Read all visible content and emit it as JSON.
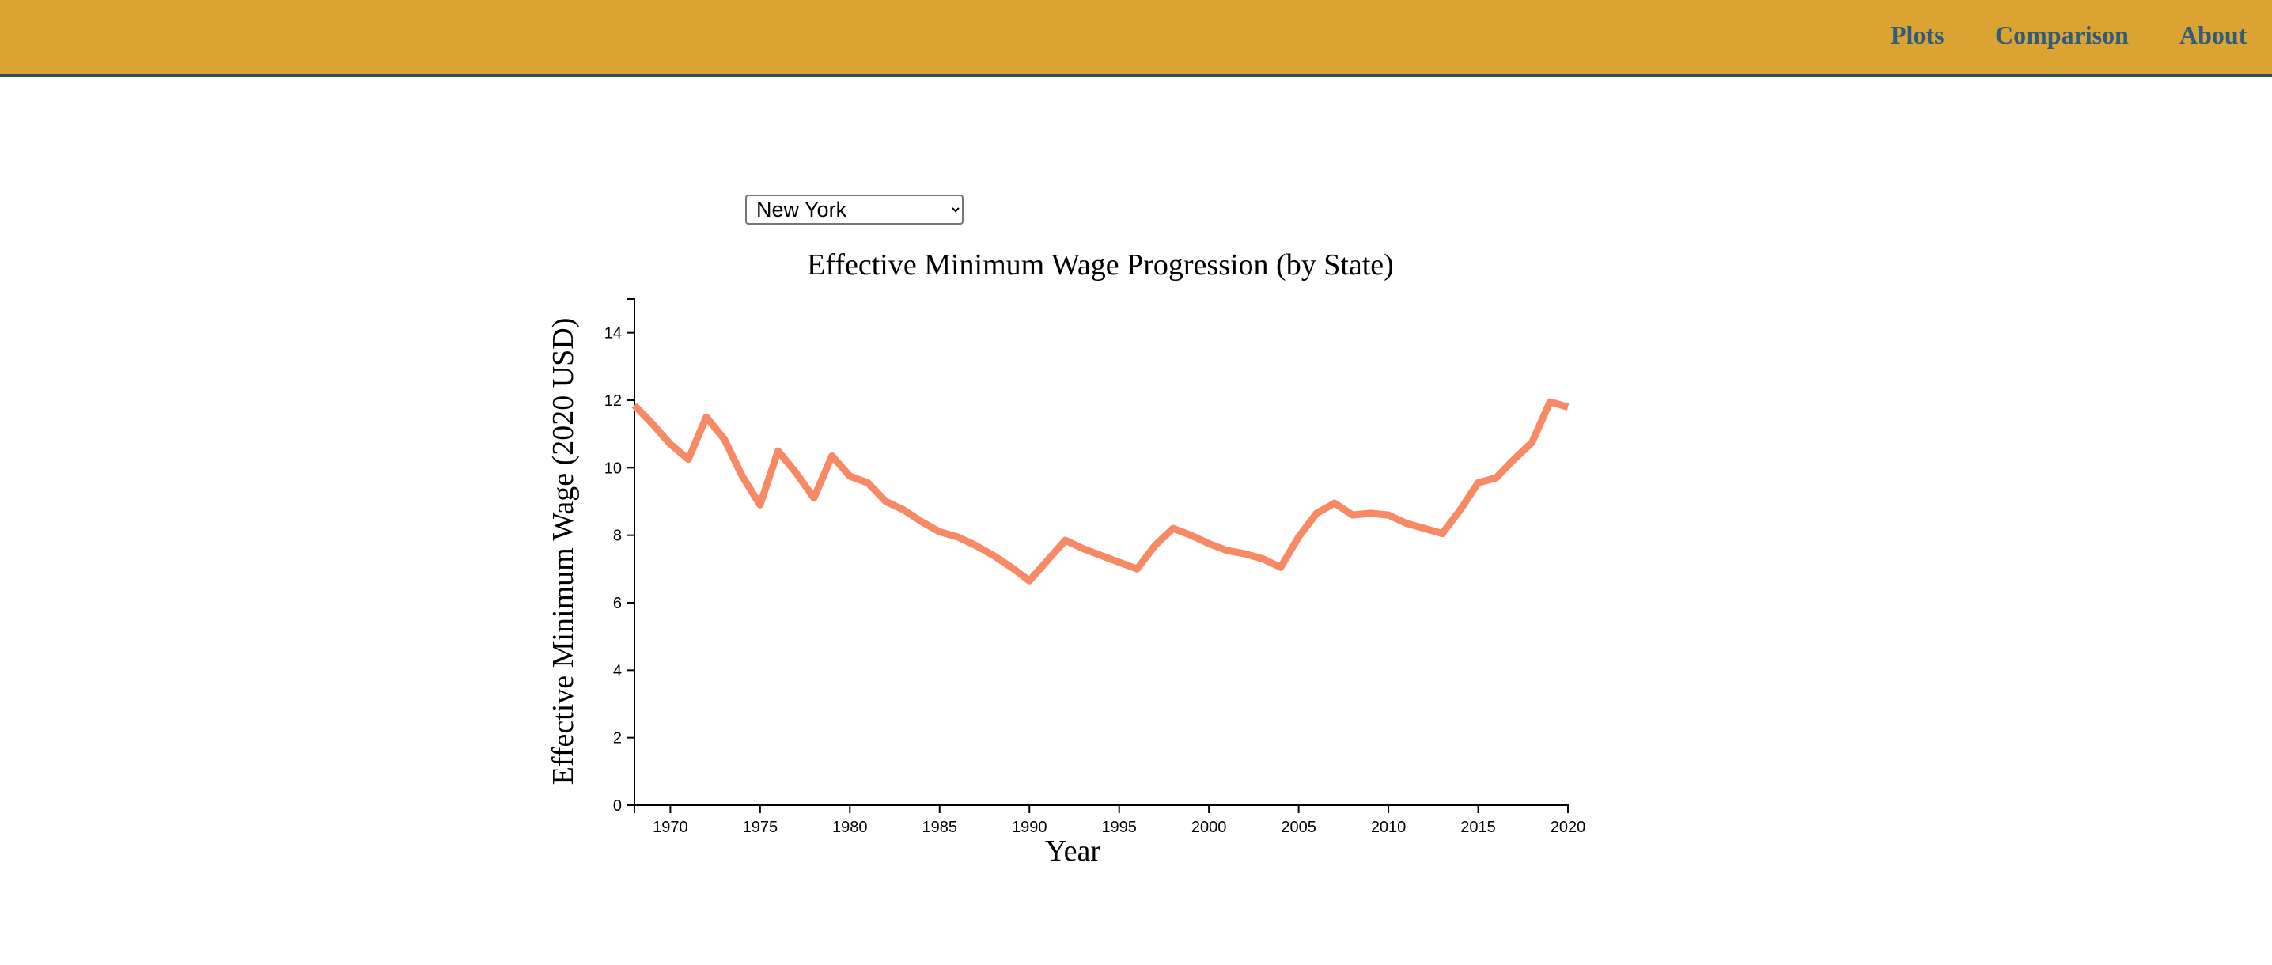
{
  "nav": {
    "links": [
      {
        "label": "Plots"
      },
      {
        "label": "Comparison"
      },
      {
        "label": "About"
      }
    ]
  },
  "controls": {
    "state_select": {
      "selected": "New York",
      "options": [
        "New York"
      ]
    }
  },
  "colors": {
    "header": "#dba331",
    "nav_text": "#2f5b7c",
    "line": "#f78a64"
  },
  "chart_data": {
    "type": "line",
    "title": "Effective Minimum Wage Progression (by State)",
    "xlabel": "Year",
    "ylabel": "Effective Minimum Wage (2020 USD)",
    "xlim": [
      1968,
      2020
    ],
    "ylim": [
      0,
      15
    ],
    "xticks": [
      1970,
      1975,
      1980,
      1985,
      1990,
      1995,
      2000,
      2005,
      2010,
      2015,
      2020
    ],
    "yticks": [
      0,
      2,
      4,
      6,
      8,
      10,
      12,
      14
    ],
    "grid": false,
    "legend": "none",
    "series": [
      {
        "x": [
          1968,
          1969,
          1970,
          1971,
          1972,
          1973,
          1974,
          1975,
          1976,
          1977,
          1978,
          1979,
          1980,
          1981,
          1982,
          1983,
          1984,
          1985,
          1986,
          1987,
          1988,
          1989,
          1990,
          1991,
          1992,
          1993,
          1994,
          1995,
          1996,
          1997,
          1998,
          1999,
          2000,
          2001,
          2002,
          2003,
          2004,
          2005,
          2006,
          2007,
          2008,
          2009,
          2010,
          2011,
          2012,
          2013,
          2014,
          2015,
          2016,
          2017,
          2018,
          2019,
          2020
        ],
        "y": [
          11.85,
          11.3,
          10.7,
          10.25,
          11.5,
          10.85,
          9.75,
          8.9,
          10.5,
          9.85,
          9.1,
          10.35,
          9.75,
          9.55,
          9.0,
          8.75,
          8.4,
          8.1,
          7.95,
          7.7,
          7.4,
          7.05,
          6.65,
          7.25,
          7.85,
          7.6,
          7.4,
          7.2,
          7.0,
          7.7,
          8.2,
          8.0,
          7.75,
          7.55,
          7.45,
          7.3,
          7.05,
          7.95,
          8.65,
          8.95,
          8.6,
          8.65,
          8.6,
          8.35,
          8.2,
          8.05,
          8.75,
          9.55,
          9.7,
          10.25,
          10.75,
          11.95,
          11.8
        ]
      }
    ]
  }
}
